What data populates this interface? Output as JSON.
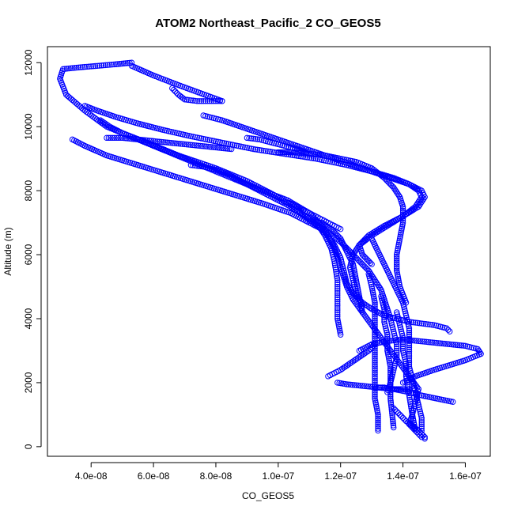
{
  "chart_data": {
    "type": "scatter",
    "title": "ATOM2 Northeast_Pacific_2 CO_GEOS5",
    "xlabel": "CO_GEOS5",
    "ylabel": "Altitude (m)",
    "xlim": [
      2.6e-08,
      1.68e-07
    ],
    "ylim": [
      -300,
      12500
    ],
    "x_ticks": [
      {
        "value": 4e-08,
        "label": "4.0e-08"
      },
      {
        "value": 6e-08,
        "label": "6.0e-08"
      },
      {
        "value": 8e-08,
        "label": "8.0e-08"
      },
      {
        "value": 1e-07,
        "label": "1.0e-07"
      },
      {
        "value": 1.2e-07,
        "label": "1.2e-07"
      },
      {
        "value": 1.4e-07,
        "label": "1.4e-07"
      },
      {
        "value": 1.6e-07,
        "label": "1.6e-07"
      }
    ],
    "y_ticks": [
      {
        "value": 0,
        "label": "0"
      },
      {
        "value": 2000,
        "label": "2000"
      },
      {
        "value": 4000,
        "label": "4000"
      },
      {
        "value": 6000,
        "label": "6000"
      },
      {
        "value": 8000,
        "label": "8000"
      },
      {
        "value": 10000,
        "label": "10000"
      },
      {
        "value": 12000,
        "label": "12000"
      }
    ],
    "marker": "open-circle",
    "color": "#0000ff",
    "grid": false,
    "legend": "none",
    "series": [
      {
        "x": [
          5.3e-08,
          4.8e-08,
          4.2e-08,
          3.6e-08,
          3.1e-08,
          3e-08,
          3.2e-08,
          3.8e-08,
          4.5e-08,
          5.5e-08,
          6.5e-08,
          7.5e-08,
          8.5e-08,
          9.5e-08,
          1.03e-07,
          1.1e-07,
          1.15e-07,
          1.18e-07,
          1.2e-07,
          1.22e-07,
          1.24e-07,
          1.27e-07,
          1.3e-07,
          1.33e-07,
          1.36e-07,
          1.39e-07,
          1.42e-07,
          1.45e-07,
          1.44e-07,
          1.43e-07,
          1.42e-07,
          1.44e-07,
          1.46e-07
        ],
        "y": [
          12000,
          11950,
          11900,
          11850,
          11800,
          11500,
          11000,
          10500,
          10000,
          9600,
          9200,
          8800,
          8400,
          8000,
          7700,
          7300,
          6800,
          6200,
          5600,
          5000,
          4600,
          4200,
          3800,
          3400,
          3000,
          2600,
          2200,
          1800,
          1400,
          1000,
          700,
          500,
          300
        ]
      },
      {
        "x": [
          5.3e-08,
          6e-08,
          6.8e-08,
          7.5e-08,
          8.2e-08
        ],
        "y": [
          11900,
          11600,
          11300,
          11050,
          10800
        ]
      },
      {
        "x": [
          6.6e-08,
          6.8e-08,
          7e-08,
          7.4e-08,
          7.8e-08,
          8.2e-08
        ],
        "y": [
          11200,
          11000,
          10850,
          10800,
          10800,
          10800
        ]
      },
      {
        "x": [
          3.8e-08,
          4.2e-08,
          4.8e-08,
          5.5e-08,
          6.3e-08,
          7.2e-08,
          8.2e-08,
          9.2e-08,
          1.02e-07,
          1.12e-07,
          1.22e-07,
          1.3e-07,
          1.37e-07,
          1.42e-07,
          1.45e-07,
          1.46e-07,
          1.44e-07,
          1.4e-07,
          1.35e-07,
          1.3e-07,
          1.26e-07,
          1.24e-07,
          1.23e-07,
          1.24e-07,
          1.25e-07,
          1.27e-07
        ],
        "y": [
          10650,
          10500,
          10300,
          10100,
          9900,
          9700,
          9500,
          9300,
          9150,
          9000,
          8800,
          8600,
          8400,
          8200,
          8000,
          7800,
          7500,
          7200,
          6900,
          6600,
          6300,
          6000,
          5600,
          5200,
          4800,
          4400
        ]
      },
      {
        "x": [
          4.3e-08,
          4.6e-08,
          5e-08,
          5.8e-08,
          6.8e-08,
          8e-08,
          9e-08,
          9.8e-08,
          1.05e-07,
          1.1e-07,
          1.15e-07,
          1.18e-07,
          1.2e-07,
          1.21e-07,
          1.22e-07,
          1.24e-07,
          1.27e-07,
          1.3e-07,
          1.34e-07,
          1.38e-07,
          1.42e-07,
          1.46e-07,
          1.5e-07,
          1.54e-07,
          1.55e-07
        ],
        "y": [
          10200,
          10000,
          9800,
          9500,
          9100,
          8700,
          8300,
          7900,
          7500,
          7100,
          6700,
          6300,
          5900,
          5500,
          5100,
          4800,
          4500,
          4300,
          4100,
          4000,
          3900,
          3850,
          3800,
          3700,
          3600
        ]
      },
      {
        "x": [
          4.5e-08,
          5e-08,
          5.5e-08,
          6e-08,
          6.5e-08,
          7e-08,
          7.5e-08,
          8e-08,
          8.5e-08
        ],
        "y": [
          9650,
          9650,
          9600,
          9550,
          9500,
          9450,
          9400,
          9350,
          9300
        ]
      },
      {
        "x": [
          3.4e-08,
          3.8e-08,
          4.5e-08,
          5.5e-08,
          6.5e-08,
          7.5e-08,
          8.5e-08,
          9.5e-08,
          1.04e-07,
          1.1e-07,
          1.16e-07,
          1.2e-07,
          1.23e-07,
          1.26e-07,
          1.29e-07,
          1.31e-07,
          1.33e-07,
          1.34e-07,
          1.35e-07,
          1.36e-07,
          1.37e-07,
          1.38e-07,
          1.38e-07,
          1.37e-07,
          1.36e-07,
          1.35e-07
        ],
        "y": [
          9600,
          9400,
          9100,
          8800,
          8500,
          8200,
          7900,
          7600,
          7300,
          7000,
          6700,
          6400,
          6100,
          5800,
          5500,
          5200,
          4900,
          4600,
          4300,
          4000,
          3600,
          3200,
          2800,
          2400,
          2000,
          1700
        ]
      },
      {
        "x": [
          7.2e-08,
          7.6e-08,
          8e-08,
          8.4e-08,
          8.8e-08,
          9.2e-08,
          9.6e-08,
          1e-07,
          1.04e-07,
          1.07e-07,
          1.1e-07,
          1.13e-07,
          1.15e-07,
          1.17e-07,
          1.18e-07,
          1.19e-07,
          1.19e-07,
          1.19e-07,
          1.2e-07
        ],
        "y": [
          8800,
          8750,
          8650,
          8500,
          8300,
          8100,
          7900,
          7700,
          7500,
          7300,
          7100,
          6900,
          6600,
          6200,
          5800,
          5200,
          4600,
          4000,
          3500
        ]
      },
      {
        "x": [
          7.6e-08,
          8.2e-08,
          8.8e-08,
          9.4e-08,
          1e-07,
          1.06e-07,
          1.12e-07,
          1.18e-07,
          1.24e-07,
          1.3e-07,
          1.36e-07,
          1.42e-07,
          1.46e-07,
          1.47e-07,
          1.45e-07,
          1.4e-07,
          1.34e-07,
          1.29e-07,
          1.26e-07,
          1.27e-07,
          1.3e-07
        ],
        "y": [
          10350,
          10200,
          10000,
          9800,
          9600,
          9400,
          9200,
          9000,
          8800,
          8600,
          8400,
          8200,
          8000,
          7800,
          7500,
          7200,
          6900,
          6600,
          6300,
          6000,
          5700
        ]
      },
      {
        "x": [
          9e-08,
          9.4e-08,
          9.8e-08,
          1.02e-07,
          1.06e-07,
          1.09e-07
        ],
        "y": [
          9650,
          9600,
          9500,
          9400,
          9300,
          9200
        ]
      },
      {
        "x": [
          1e-07,
          1.05e-07,
          1.1e-07,
          1.15e-07,
          1.2e-07,
          1.25e-07,
          1.3e-07,
          1.34e-07,
          1.37e-07,
          1.39e-07,
          1.4e-07,
          1.4e-07,
          1.39e-07,
          1.38e-07,
          1.38e-07,
          1.39e-07,
          1.41e-07
        ],
        "y": [
          9200,
          9200,
          9150,
          9100,
          9000,
          8900,
          8700,
          8400,
          8100,
          7800,
          7500,
          7000,
          6500,
          6000,
          5500,
          5000,
          4500
        ]
      },
      {
        "x": [
          1.02e-07,
          1.04e-07,
          1.06e-07,
          1.08e-07,
          1.1e-07,
          1.12e-07,
          1.14e-07,
          1.16e-07,
          1.18e-07,
          1.2e-07
        ],
        "y": [
          7650,
          7600,
          7500,
          7400,
          7300,
          7200,
          7100,
          7000,
          6900,
          6800
        ]
      },
      {
        "x": [
          1.1e-07,
          1.14e-07,
          1.17e-07,
          1.2e-07,
          1.22e-07,
          1.24e-07,
          1.25e-07,
          1.26e-07,
          1.27e-07
        ],
        "y": [
          7050,
          7000,
          6800,
          6500,
          6100,
          5700,
          5200,
          4700,
          4200
        ]
      },
      {
        "x": [
          1.3e-07,
          1.32e-07,
          1.34e-07,
          1.36e-07,
          1.38e-07,
          1.4e-07,
          1.41e-07,
          1.42e-07,
          1.42e-07,
          1.42e-07,
          1.42e-07,
          1.43e-07,
          1.44e-07,
          1.45e-07,
          1.46e-07,
          1.46e-07
        ],
        "y": [
          6500,
          6100,
          5700,
          5300,
          4900,
          4500,
          4100,
          3700,
          3300,
          2900,
          2500,
          2100,
          1700,
          1300,
          900,
          500
        ]
      },
      {
        "x": [
          1.29e-07,
          1.3e-07,
          1.31e-07,
          1.31e-07,
          1.31e-07,
          1.31e-07,
          1.31e-07,
          1.31e-07,
          1.31e-07,
          1.32e-07,
          1.32e-07
        ],
        "y": [
          5400,
          5000,
          4500,
          4000,
          3500,
          3000,
          2500,
          2000,
          1500,
          1000,
          500
        ]
      },
      {
        "x": [
          1.33e-07,
          1.34e-07,
          1.34e-07,
          1.35e-07,
          1.35e-07,
          1.36e-07,
          1.36e-07,
          1.36e-07,
          1.37e-07
        ],
        "y": [
          4700,
          4300,
          3900,
          3500,
          3000,
          2500,
          2000,
          1500,
          600
        ]
      },
      {
        "x": [
          1.38e-07,
          1.39e-07,
          1.4e-07,
          1.4e-07,
          1.41e-07,
          1.41e-07,
          1.42e-07,
          1.43e-07,
          1.44e-07
        ],
        "y": [
          4200,
          3800,
          3400,
          3000,
          2600,
          2200,
          1600,
          1000,
          500
        ]
      },
      {
        "x": [
          1.26e-07,
          1.3e-07,
          1.35e-07,
          1.4e-07,
          1.45e-07,
          1.5e-07,
          1.55e-07,
          1.6e-07,
          1.64e-07,
          1.65e-07,
          1.6e-07,
          1.55e-07,
          1.5e-07,
          1.44e-07,
          1.4e-07
        ],
        "y": [
          3000,
          3200,
          3300,
          3350,
          3300,
          3250,
          3200,
          3150,
          3050,
          2900,
          2700,
          2550,
          2400,
          2200,
          2000
        ]
      },
      {
        "x": [
          1.16e-07,
          1.18e-07,
          1.2e-07,
          1.23e-07,
          1.26e-07,
          1.29e-07,
          1.31e-07
        ],
        "y": [
          2200,
          2300,
          2400,
          2600,
          2800,
          3000,
          3200
        ]
      },
      {
        "x": [
          1.19e-07,
          1.22e-07,
          1.27e-07,
          1.32e-07,
          1.37e-07,
          1.42e-07,
          1.46e-07,
          1.51e-07,
          1.56e-07
        ],
        "y": [
          2000,
          1950,
          1900,
          1850,
          1800,
          1700,
          1600,
          1500,
          1400
        ]
      },
      {
        "x": [
          1.32e-07,
          1.34e-07,
          1.36e-07,
          1.38e-07,
          1.4e-07,
          1.42e-07
        ],
        "y": [
          1850,
          1850,
          1800,
          1800,
          1800,
          1800
        ]
      },
      {
        "x": [
          1.37e-07,
          1.39e-07,
          1.41e-07,
          1.43e-07,
          1.45e-07,
          1.46e-07,
          1.47e-07,
          1.47e-07
        ],
        "y": [
          1200,
          1000,
          800,
          650,
          500,
          400,
          300,
          250
        ]
      }
    ]
  }
}
